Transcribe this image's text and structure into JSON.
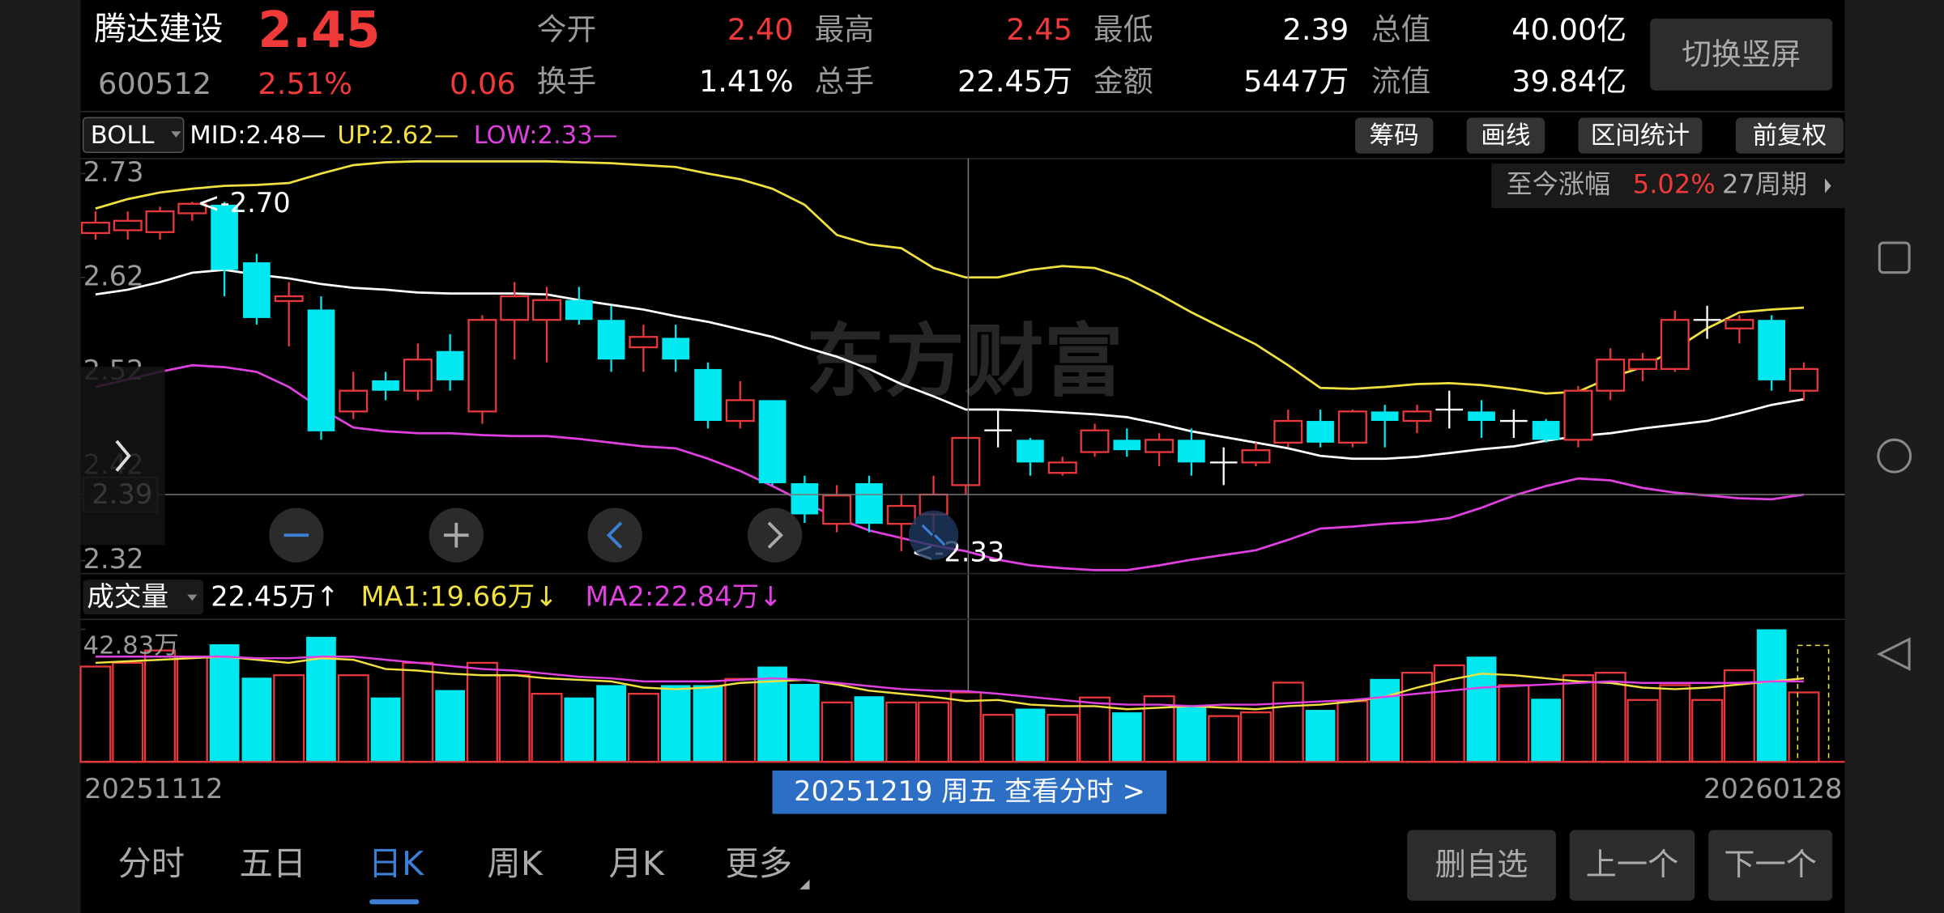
{
  "header": {
    "name": "腾达建设",
    "price": "2.45",
    "code": "600512",
    "change_pct": "2.51%",
    "change": "0.06",
    "fields": [
      {
        "label": "今开",
        "value": "2.40",
        "color": "#f03a3a"
      },
      {
        "label": "最高",
        "value": "2.45",
        "color": "#f03a3a"
      },
      {
        "label": "最低",
        "value": "2.39",
        "color": "#ffffff"
      },
      {
        "label": "总值",
        "value": "40.00亿",
        "color": "#ffffff"
      },
      {
        "label": "换手",
        "value": "1.41%",
        "color": "#ffffff"
      },
      {
        "label": "总手",
        "value": "22.45万",
        "color": "#ffffff"
      },
      {
        "label": "金额",
        "value": "5447万",
        "color": "#ffffff"
      },
      {
        "label": "流值",
        "value": "39.84亿",
        "color": "#ffffff"
      }
    ],
    "orientation_button": "切换竖屏"
  },
  "indicator": {
    "name": "BOLL",
    "mid": "MID:2.48—",
    "up": "UP:2.62—",
    "low": "LOW:2.33—"
  },
  "tools": [
    "筹码",
    "画线",
    "区间统计",
    "前复权"
  ],
  "range_stat": {
    "label": "至今涨幅",
    "value": "5.02%",
    "period": "27周期"
  },
  "watermark": "东方财富",
  "crosshair": {
    "price": 2.39,
    "date_label": "20251219 周五 查看分时 >"
  },
  "volume_legend": {
    "name": "成交量",
    "volume": "22.45万↑",
    "ma1": "MA1:19.66万↓",
    "ma2": "MA2:22.84万↓"
  },
  "tabs": [
    "分时",
    "五日",
    "日K",
    "周K",
    "月K",
    "更多"
  ],
  "active_tab": "日K",
  "actions": [
    "删自选",
    "上一个",
    "下一个"
  ],
  "chart_data": [
    {
      "type": "candlestick",
      "up_color": "#e8383c",
      "down_color": "#00e8f0",
      "categories": [
        "20251112",
        null,
        null,
        null,
        null,
        null,
        null,
        null,
        null,
        null,
        null,
        null,
        null,
        null,
        null,
        null,
        null,
        null,
        null,
        null,
        null,
        null,
        null,
        null,
        null,
        null,
        null,
        null,
        null,
        null,
        null,
        null,
        null,
        null,
        null,
        null,
        null,
        null,
        null,
        null,
        null,
        null,
        null,
        null,
        null,
        null,
        null,
        null,
        null,
        null,
        null,
        null,
        null,
        "20260128"
      ],
      "open": [
        2.667,
        2.67,
        2.668,
        2.688,
        2.697,
        2.636,
        2.595,
        2.586,
        2.478,
        2.511,
        2.5,
        2.542,
        2.478,
        2.575,
        2.575,
        2.596,
        2.575,
        2.546,
        2.556,
        2.523,
        2.468,
        2.49,
        2.402,
        2.359,
        2.402,
        2.359,
        2.369,
        2.4,
        2.458,
        2.448,
        2.413,
        2.435,
        2.448,
        2.435,
        2.448,
        2.424,
        2.424,
        2.445,
        2.468,
        2.445,
        2.478,
        2.468,
        2.48,
        2.478,
        2.468,
        2.468,
        2.448,
        2.5,
        2.523,
        2.523,
        2.575,
        2.566,
        2.575,
        2.5
      ],
      "high": [
        2.69,
        2.69,
        2.695,
        2.7,
        2.7,
        2.645,
        2.615,
        2.6,
        2.52,
        2.52,
        2.55,
        2.56,
        2.58,
        2.615,
        2.61,
        2.61,
        2.59,
        2.57,
        2.57,
        2.53,
        2.51,
        2.49,
        2.41,
        2.4,
        2.41,
        2.39,
        2.41,
        2.45,
        2.48,
        2.45,
        2.43,
        2.465,
        2.46,
        2.455,
        2.46,
        2.44,
        2.445,
        2.48,
        2.48,
        2.48,
        2.485,
        2.485,
        2.5,
        2.49,
        2.48,
        2.47,
        2.505,
        2.545,
        2.54,
        2.585,
        2.59,
        2.58,
        2.58,
        2.53
      ],
      "low": [
        2.66,
        2.66,
        2.66,
        2.68,
        2.6,
        2.57,
        2.547,
        2.448,
        2.47,
        2.49,
        2.49,
        2.5,
        2.465,
        2.533,
        2.53,
        2.57,
        2.52,
        2.52,
        2.52,
        2.46,
        2.46,
        2.4,
        2.36,
        2.35,
        2.35,
        2.33,
        2.35,
        2.39,
        2.44,
        2.41,
        2.41,
        2.43,
        2.43,
        2.42,
        2.41,
        2.4,
        2.42,
        2.44,
        2.44,
        2.44,
        2.44,
        2.455,
        2.46,
        2.45,
        2.45,
        2.445,
        2.44,
        2.49,
        2.51,
        2.52,
        2.555,
        2.55,
        2.5,
        2.49
      ],
      "close": [
        2.678,
        2.68,
        2.69,
        2.698,
        2.628,
        2.577,
        2.6,
        2.457,
        2.5,
        2.5,
        2.533,
        2.511,
        2.575,
        2.6,
        2.596,
        2.575,
        2.533,
        2.557,
        2.533,
        2.468,
        2.49,
        2.402,
        2.369,
        2.389,
        2.359,
        2.378,
        2.39,
        2.45,
        2.458,
        2.424,
        2.424,
        2.458,
        2.437,
        2.448,
        2.424,
        2.424,
        2.437,
        2.468,
        2.445,
        2.478,
        2.468,
        2.478,
        2.48,
        2.468,
        2.468,
        2.448,
        2.5,
        2.533,
        2.533,
        2.575,
        2.575,
        2.575,
        2.511,
        2.523
      ],
      "series": [
        {
          "name": "UP",
          "color": "#f0e040",
          "values": [
            2.693,
            2.703,
            2.71,
            2.714,
            2.717,
            2.718,
            2.72,
            2.73,
            2.739,
            2.742,
            2.743,
            2.743,
            2.743,
            2.743,
            2.743,
            2.742,
            2.741,
            2.739,
            2.737,
            2.73,
            2.724,
            2.714,
            2.697,
            2.665,
            2.655,
            2.651,
            2.63,
            2.62,
            2.62,
            2.628,
            2.632,
            2.63,
            2.619,
            2.602,
            2.583,
            2.566,
            2.549,
            2.527,
            2.503,
            2.502,
            2.504,
            2.507,
            2.508,
            2.506,
            2.502,
            2.497,
            2.499,
            2.514,
            2.525,
            2.544,
            2.566,
            2.583,
            2.586,
            2.588
          ]
        },
        {
          "name": "MID",
          "color": "#ffffff",
          "values": [
            2.602,
            2.607,
            2.615,
            2.625,
            2.628,
            2.623,
            2.619,
            2.613,
            2.609,
            2.607,
            2.604,
            2.603,
            2.603,
            2.603,
            2.602,
            2.596,
            2.591,
            2.586,
            2.579,
            2.573,
            2.565,
            2.557,
            2.546,
            2.536,
            2.523,
            2.507,
            2.494,
            2.48,
            2.48,
            2.479,
            2.477,
            2.475,
            2.472,
            2.465,
            2.457,
            2.451,
            2.445,
            2.439,
            2.431,
            2.428,
            2.428,
            2.43,
            2.434,
            2.438,
            2.441,
            2.447,
            2.452,
            2.455,
            2.46,
            2.464,
            2.468,
            2.476,
            2.485,
            2.491
          ]
        },
        {
          "name": "LOW",
          "color": "#e040e0",
          "values": [
            2.504,
            2.512,
            2.52,
            2.527,
            2.525,
            2.52,
            2.504,
            2.481,
            2.461,
            2.457,
            2.455,
            2.455,
            2.453,
            2.452,
            2.452,
            2.449,
            2.445,
            2.441,
            2.439,
            2.428,
            2.415,
            2.399,
            2.382,
            2.365,
            2.352,
            2.344,
            2.336,
            2.33,
            2.321,
            2.315,
            2.312,
            2.31,
            2.31,
            2.315,
            2.321,
            2.326,
            2.331,
            2.342,
            2.354,
            2.356,
            2.359,
            2.361,
            2.365,
            2.376,
            2.389,
            2.399,
            2.407,
            2.405,
            2.397,
            2.392,
            2.389,
            2.386,
            2.385,
            2.39
          ]
        }
      ],
      "ylim": [
        2.3,
        2.745
      ],
      "yticks": [
        2.73,
        2.62,
        2.52,
        2.42,
        2.32
      ],
      "annotations": [
        "<-2.70",
        "<-2.33"
      ]
    },
    {
      "type": "bar",
      "values": [
        30.8,
        32.0,
        36.0,
        34.0,
        38.0,
        27.2,
        28.0,
        40.4,
        28.0,
        20.8,
        32.0,
        23.2,
        32.0,
        28.0,
        22.0,
        20.8,
        24.8,
        22.0,
        24.8,
        24.8,
        26.8,
        30.8,
        25.2,
        19.2,
        21.2,
        19.2,
        19.2,
        22.45,
        15.2,
        17.2,
        15.2,
        20.8,
        16.0,
        21.2,
        18.0,
        14.8,
        16.0,
        25.6,
        16.8,
        19.6,
        26.8,
        28.8,
        31.2,
        34.0,
        24.8,
        20.4,
        28.0,
        28.8,
        20.0,
        24.8,
        20.0,
        29.6,
        42.83,
        22.45
      ],
      "series": [
        {
          "name": "MA1",
          "color": "#f0e040",
          "values": [
            32.0,
            32.5,
            33.0,
            33.5,
            34.0,
            33.0,
            32.0,
            33.5,
            33.0,
            30.0,
            29.5,
            28.5,
            28.0,
            28.0,
            27.0,
            26.5,
            26.0,
            24.0,
            23.5,
            24.0,
            25.5,
            26.0,
            26.5,
            25.0,
            23.0,
            22.0,
            21.0,
            19.66,
            20.0,
            18.5,
            18.0,
            18.0,
            17.0,
            17.5,
            18.0,
            17.5,
            17.0,
            18.0,
            18.5,
            19.5,
            21.0,
            24.0,
            26.5,
            28.5,
            28.0,
            27.0,
            26.0,
            25.5,
            24.0,
            23.5,
            24.0,
            25.0,
            26.0,
            27.0
          ]
        },
        {
          "name": "MA2",
          "color": "#e040e0",
          "values": [
            34.0,
            34.0,
            34.0,
            34.0,
            34.0,
            33.5,
            33.5,
            34.0,
            34.0,
            33.0,
            32.0,
            31.0,
            30.0,
            29.5,
            28.5,
            27.5,
            27.0,
            26.0,
            26.0,
            26.0,
            26.5,
            27.0,
            26.5,
            25.5,
            24.5,
            23.5,
            23.0,
            22.84,
            22.0,
            21.0,
            20.0,
            19.0,
            18.5,
            18.5,
            18.0,
            18.5,
            18.5,
            19.0,
            19.5,
            20.0,
            21.0,
            22.0,
            23.0,
            24.0,
            24.5,
            25.0,
            25.5,
            26.0,
            25.5,
            25.5,
            25.5,
            25.5,
            26.0,
            26.0
          ]
        }
      ],
      "ylim": [
        0,
        42.83
      ],
      "yticks": [
        {
          "value": 42.83,
          "label": "42.83万"
        }
      ]
    }
  ]
}
